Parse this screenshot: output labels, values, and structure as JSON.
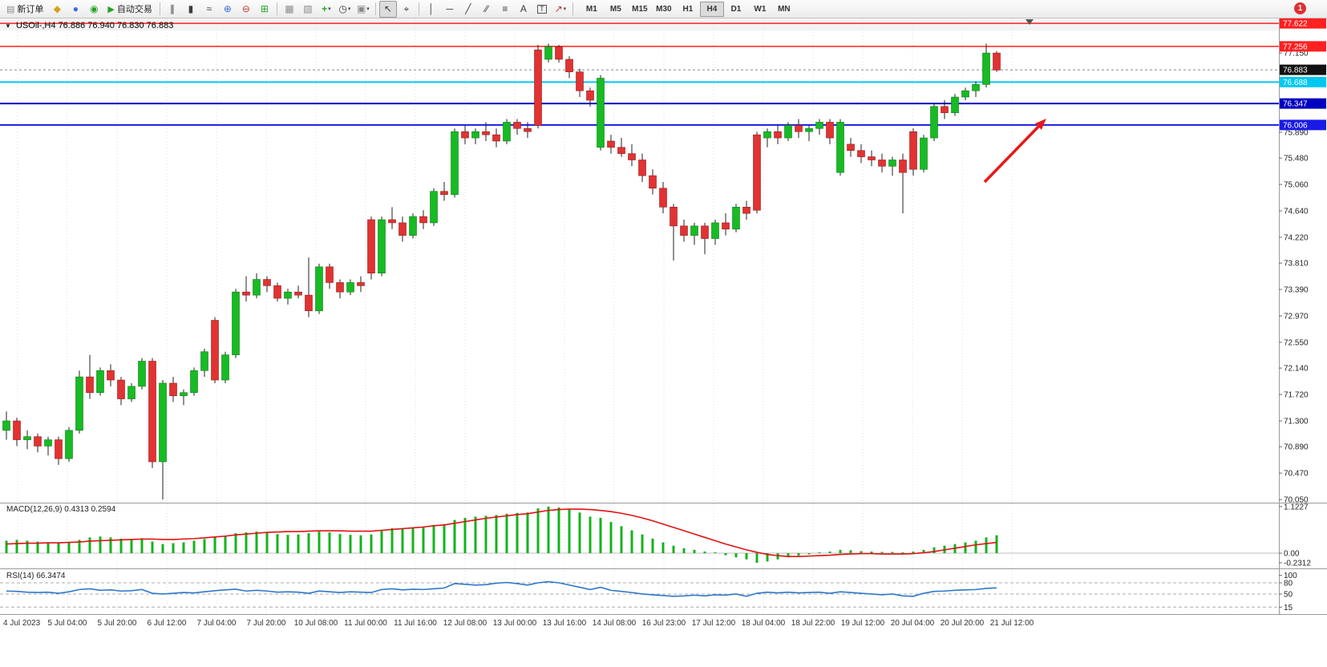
{
  "window": {
    "notification_badge": "1"
  },
  "toolbar": {
    "new_order_label": "新订单",
    "autotrade_label": "自动交易",
    "timeframes": [
      "M1",
      "M5",
      "M15",
      "M30",
      "H1",
      "H4",
      "D1",
      "W1",
      "MN"
    ],
    "active_timeframe": "H4"
  },
  "icons": {
    "title_marker": "▼",
    "new_order": "▤",
    "layout": "◆",
    "profile": "●",
    "sound": "◉",
    "autotrade": "▶",
    "bars": "∥",
    "candles": "▮",
    "linechart": "≈",
    "zoom_in": "⊕",
    "zoom_out": "⊖",
    "tile": "⊞",
    "arrange": "▦",
    "cascade": "▧",
    "new_chart": "+",
    "periods": "◷",
    "templates": "▣",
    "cursor": "↖",
    "crosshair": "⌖",
    "vline": "│",
    "hline": "─",
    "trendline": "╱",
    "channel": "∕∕",
    "fibo": "≡",
    "text": "A",
    "label": "T",
    "arrows": "↗",
    "dropdown": "▾"
  },
  "chart": {
    "title": "USOil-,H4",
    "ohlc_text": "76.886 76.940 76.830 76.883"
  },
  "chart_data": {
    "type": "candlestick",
    "symbol": "USOil-",
    "timeframe": "H4",
    "current_bar": {
      "open": 76.886,
      "high": 76.94,
      "low": 76.83,
      "close": 76.883
    },
    "colors": {
      "up": "#17bb23",
      "down": "#e23232",
      "up_border": "#0e7a18",
      "down_border": "#8f1d1d",
      "macd_hist": "#14b31c",
      "macd_signal": "#e01212",
      "rsi": "#2e78c8",
      "arrow": "#e81717"
    },
    "price_axis": {
      "min": 70.0,
      "max": 77.7,
      "ticks": [
        "77.150",
        "75.890",
        "75.480",
        "75.060",
        "74.640",
        "74.220",
        "73.810",
        "73.390",
        "72.970",
        "72.550",
        "72.140",
        "71.720",
        "71.300",
        "70.890",
        "70.470",
        "70.050"
      ]
    },
    "hlines": [
      {
        "label": "77.622",
        "price": 77.622,
        "color": "#ff2020",
        "width": 1.5
      },
      {
        "label": "77.256",
        "price": 77.256,
        "color": "#ff2020",
        "width": 1.5
      },
      {
        "label": "76.883",
        "price": 76.883,
        "color": "#888888",
        "width": 1,
        "style": "dashed",
        "box": "#111111"
      },
      {
        "label": "76.688",
        "price": 76.688,
        "color": "#00c8f0",
        "width": 2
      },
      {
        "label": "76.347",
        "price": 76.347,
        "color": "#0000c0",
        "width": 2
      },
      {
        "label": "76.006",
        "price": 76.006,
        "color": "#1a1ae6",
        "width": 2
      }
    ],
    "candles": [
      [
        71.15,
        71.45,
        71.0,
        71.3
      ],
      [
        71.3,
        71.35,
        70.9,
        71.0
      ],
      [
        71.0,
        71.15,
        70.85,
        71.05
      ],
      [
        71.05,
        71.1,
        70.8,
        70.9
      ],
      [
        70.9,
        71.05,
        70.75,
        71.0
      ],
      [
        71.0,
        71.05,
        70.6,
        70.7
      ],
      [
        70.7,
        71.2,
        70.65,
        71.15
      ],
      [
        71.15,
        72.1,
        71.1,
        72.0
      ],
      [
        72.0,
        72.35,
        71.65,
        71.75
      ],
      [
        71.75,
        72.15,
        71.7,
        72.1
      ],
      [
        72.1,
        72.2,
        71.85,
        71.95
      ],
      [
        71.95,
        72.0,
        71.55,
        71.65
      ],
      [
        71.65,
        71.9,
        71.6,
        71.85
      ],
      [
        71.85,
        72.3,
        71.8,
        72.25
      ],
      [
        72.25,
        72.3,
        70.55,
        70.65
      ],
      [
        70.65,
        71.95,
        70.05,
        71.9
      ],
      [
        71.9,
        72.0,
        71.6,
        71.7
      ],
      [
        71.7,
        71.8,
        71.55,
        71.75
      ],
      [
        71.75,
        72.15,
        71.7,
        72.1
      ],
      [
        72.1,
        72.45,
        72.0,
        72.4
      ],
      [
        72.9,
        72.95,
        71.9,
        71.95
      ],
      [
        71.95,
        72.4,
        71.9,
        72.35
      ],
      [
        72.35,
        73.4,
        72.3,
        73.35
      ],
      [
        73.35,
        73.6,
        73.2,
        73.3
      ],
      [
        73.3,
        73.65,
        73.25,
        73.55
      ],
      [
        73.55,
        73.6,
        73.35,
        73.45
      ],
      [
        73.45,
        73.5,
        73.2,
        73.25
      ],
      [
        73.25,
        73.4,
        73.15,
        73.35
      ],
      [
        73.35,
        73.45,
        73.25,
        73.3
      ],
      [
        73.3,
        73.9,
        72.95,
        73.05
      ],
      [
        73.05,
        73.8,
        73.0,
        73.75
      ],
      [
        73.75,
        73.8,
        73.4,
        73.5
      ],
      [
        73.5,
        73.55,
        73.25,
        73.35
      ],
      [
        73.35,
        73.55,
        73.3,
        73.5
      ],
      [
        73.5,
        73.6,
        73.35,
        73.45
      ],
      [
        74.5,
        74.55,
        73.55,
        73.65
      ],
      [
        73.65,
        74.55,
        73.6,
        74.5
      ],
      [
        74.5,
        74.7,
        74.35,
        74.45
      ],
      [
        74.45,
        74.55,
        74.15,
        74.25
      ],
      [
        74.25,
        74.6,
        74.2,
        74.55
      ],
      [
        74.55,
        74.65,
        74.35,
        74.45
      ],
      [
        74.45,
        75.0,
        74.4,
        74.95
      ],
      [
        74.95,
        75.1,
        74.8,
        74.9
      ],
      [
        74.9,
        75.95,
        74.85,
        75.9
      ],
      [
        75.9,
        76.0,
        75.7,
        75.8
      ],
      [
        75.8,
        75.95,
        75.7,
        75.9
      ],
      [
        75.9,
        76.05,
        75.75,
        75.85
      ],
      [
        75.85,
        75.95,
        75.65,
        75.75
      ],
      [
        75.75,
        76.1,
        75.7,
        76.05
      ],
      [
        76.05,
        76.1,
        75.85,
        75.95
      ],
      [
        75.95,
        76.05,
        75.8,
        75.9
      ],
      [
        77.2,
        77.28,
        75.95,
        76.0
      ],
      [
        77.05,
        77.3,
        77.0,
        77.25
      ],
      [
        77.25,
        77.28,
        77.0,
        77.05
      ],
      [
        77.05,
        77.1,
        76.75,
        76.85
      ],
      [
        76.85,
        76.9,
        76.45,
        76.55
      ],
      [
        76.55,
        76.6,
        76.3,
        76.4
      ],
      [
        75.65,
        76.8,
        75.6,
        76.75
      ],
      [
        75.75,
        75.85,
        75.55,
        75.65
      ],
      [
        75.65,
        75.8,
        75.5,
        75.55
      ],
      [
        75.55,
        75.7,
        75.35,
        75.45
      ],
      [
        75.45,
        75.55,
        75.1,
        75.2
      ],
      [
        75.2,
        75.3,
        74.9,
        75.0
      ],
      [
        75.0,
        75.1,
        74.6,
        74.7
      ],
      [
        74.7,
        74.75,
        73.85,
        74.4
      ],
      [
        74.4,
        74.5,
        74.15,
        74.25
      ],
      [
        74.25,
        74.45,
        74.1,
        74.4
      ],
      [
        74.4,
        74.45,
        73.95,
        74.2
      ],
      [
        74.2,
        74.5,
        74.1,
        74.45
      ],
      [
        74.45,
        74.6,
        74.25,
        74.35
      ],
      [
        74.35,
        74.75,
        74.3,
        74.7
      ],
      [
        74.7,
        74.8,
        74.5,
        74.6
      ],
      [
        75.85,
        75.9,
        74.6,
        74.65
      ],
      [
        75.8,
        75.95,
        75.65,
        75.9
      ],
      [
        75.9,
        76.0,
        75.7,
        75.8
      ],
      [
        75.8,
        76.05,
        75.75,
        76.0
      ],
      [
        76.0,
        76.1,
        75.8,
        75.9
      ],
      [
        75.9,
        76.0,
        75.75,
        75.95
      ],
      [
        75.95,
        76.1,
        75.85,
        76.05
      ],
      [
        76.05,
        76.1,
        75.7,
        75.8
      ],
      [
        75.25,
        76.1,
        75.2,
        76.05
      ],
      [
        75.7,
        75.8,
        75.5,
        75.6
      ],
      [
        75.6,
        75.7,
        75.4,
        75.5
      ],
      [
        75.5,
        75.6,
        75.35,
        75.45
      ],
      [
        75.45,
        75.55,
        75.25,
        75.35
      ],
      [
        75.35,
        75.5,
        75.2,
        75.45
      ],
      [
        75.45,
        75.55,
        74.6,
        75.25
      ],
      [
        75.9,
        75.95,
        75.2,
        75.3
      ],
      [
        75.3,
        75.85,
        75.25,
        75.8
      ],
      [
        75.8,
        76.35,
        75.75,
        76.3
      ],
      [
        76.3,
        76.4,
        76.1,
        76.2
      ],
      [
        76.2,
        76.5,
        76.15,
        76.45
      ],
      [
        76.45,
        76.6,
        76.4,
        76.55
      ],
      [
        76.55,
        76.7,
        76.45,
        76.65
      ],
      [
        76.65,
        77.3,
        76.6,
        77.15
      ],
      [
        77.15,
        77.18,
        76.85,
        76.88
      ]
    ],
    "time_labels": [
      "4 Jul 2023",
      "5 Jul 04:00",
      "5 Jul 20:00",
      "6 Jul 12:00",
      "7 Jul 04:00",
      "7 Jul 20:00",
      "10 Jul 08:00",
      "11 Jul 00:00",
      "11 Jul 16:00",
      "12 Jul 08:00",
      "13 Jul 00:00",
      "13 Jul 16:00",
      "14 Jul 08:00",
      "16 Jul 23:00",
      "17 Jul 12:00",
      "18 Jul 04:00",
      "18 Jul 22:00",
      "19 Jul 12:00",
      "20 Jul 04:00",
      "20 Jul 20:00",
      "21 Jul 12:00"
    ],
    "macd": {
      "label": "MACD(12,26,9)",
      "values_label": "0.4313 0.2594",
      "scale": [
        "1.1227",
        "0.00",
        "-0.2312"
      ],
      "histogram": [
        0.3,
        0.32,
        0.3,
        0.28,
        0.26,
        0.25,
        0.27,
        0.32,
        0.38,
        0.4,
        0.38,
        0.35,
        0.33,
        0.36,
        0.28,
        0.22,
        0.24,
        0.26,
        0.3,
        0.34,
        0.38,
        0.42,
        0.48,
        0.5,
        0.52,
        0.5,
        0.46,
        0.44,
        0.45,
        0.48,
        0.52,
        0.5,
        0.46,
        0.44,
        0.43,
        0.45,
        0.55,
        0.6,
        0.58,
        0.6,
        0.62,
        0.68,
        0.7,
        0.8,
        0.85,
        0.88,
        0.9,
        0.92,
        0.95,
        0.97,
        0.98,
        1.08,
        1.1227,
        1.1,
        1.05,
        0.98,
        0.88,
        0.85,
        0.75,
        0.65,
        0.55,
        0.45,
        0.35,
        0.26,
        0.18,
        0.12,
        0.08,
        0.04,
        0.02,
        -0.05,
        -0.1,
        -0.15,
        -0.2312,
        -0.2,
        -0.15,
        -0.1,
        -0.06,
        -0.03,
        0.02,
        0.04,
        0.08,
        0.07,
        0.05,
        0.04,
        0.03,
        0.03,
        0.02,
        0.04,
        0.08,
        0.14,
        0.18,
        0.22,
        0.26,
        0.3,
        0.38,
        0.4313
      ],
      "signal": [
        0.22,
        0.23,
        0.24,
        0.24,
        0.25,
        0.25,
        0.26,
        0.27,
        0.29,
        0.3,
        0.31,
        0.32,
        0.33,
        0.34,
        0.34,
        0.33,
        0.33,
        0.34,
        0.35,
        0.37,
        0.39,
        0.41,
        0.44,
        0.46,
        0.48,
        0.5,
        0.51,
        0.52,
        0.52,
        0.53,
        0.54,
        0.54,
        0.54,
        0.53,
        0.53,
        0.53,
        0.55,
        0.57,
        0.59,
        0.61,
        0.63,
        0.66,
        0.68,
        0.72,
        0.76,
        0.8,
        0.84,
        0.87,
        0.9,
        0.93,
        0.95,
        0.99,
        1.03,
        1.05,
        1.06,
        1.06,
        1.05,
        1.03,
        1.0,
        0.96,
        0.91,
        0.85,
        0.78,
        0.7,
        0.62,
        0.54,
        0.46,
        0.38,
        0.3,
        0.22,
        0.15,
        0.08,
        0.02,
        -0.03,
        -0.06,
        -0.08,
        -0.08,
        -0.07,
        -0.06,
        -0.05,
        -0.03,
        -0.02,
        -0.01,
        -0.01,
        -0.02,
        -0.02,
        -0.02,
        -0.01,
        0.01,
        0.04,
        0.08,
        0.12,
        0.16,
        0.2,
        0.23,
        0.2594
      ]
    },
    "rsi": {
      "label": "RSI(14)",
      "value_label": "66.3474",
      "levels": [
        "100",
        "80",
        "50",
        "15"
      ],
      "values": [
        58,
        57,
        55,
        54,
        55,
        52,
        56,
        62,
        64,
        60,
        61,
        58,
        59,
        62,
        52,
        50,
        52,
        54,
        53,
        56,
        59,
        61,
        63,
        58,
        60,
        58,
        55,
        56,
        55,
        52,
        58,
        56,
        54,
        56,
        55,
        54,
        62,
        64,
        61,
        63,
        62,
        64,
        66,
        78,
        76,
        74,
        75,
        79,
        81,
        78,
        74,
        80,
        83,
        80,
        74,
        68,
        62,
        68,
        60,
        57,
        54,
        50,
        48,
        46,
        44,
        45,
        47,
        45,
        48,
        47,
        50,
        44,
        52,
        55,
        53,
        55,
        53,
        54,
        55,
        52,
        56,
        54,
        52,
        50,
        48,
        50,
        45,
        44,
        52,
        57,
        58,
        60,
        61,
        62,
        65,
        66.35
      ]
    },
    "annotation_arrow": {
      "from": [
        1228,
        227
      ],
      "to": [
        1295,
        158
      ],
      "color": "#e81717"
    }
  }
}
